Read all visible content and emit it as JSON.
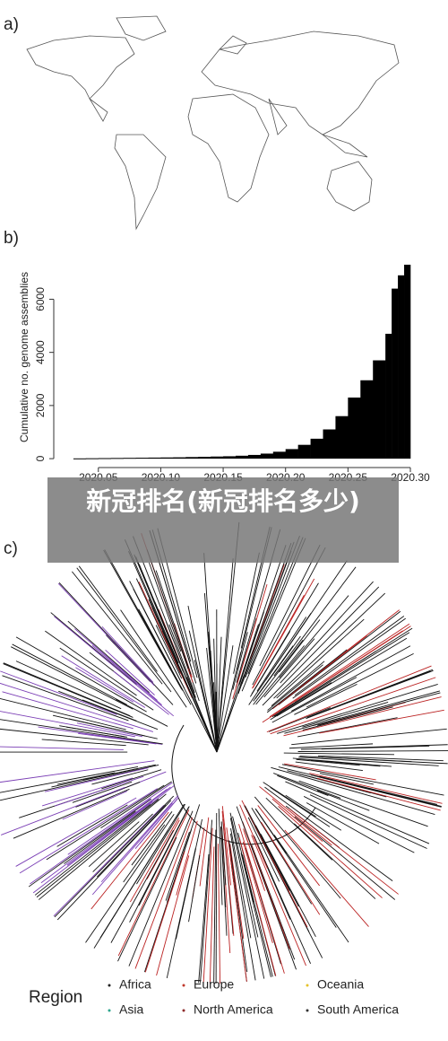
{
  "panel_labels": [
    "a)",
    "b)",
    "c)"
  ],
  "chart_data": [
    {
      "type": "area",
      "y_label": "Cumulative no. genome assemblies",
      "color": "#000000",
      "x": [
        2020.03,
        2020.04,
        2020.05,
        2020.06,
        2020.07,
        2020.08,
        2020.09,
        2020.1,
        2020.11,
        2020.12,
        2020.13,
        2020.14,
        2020.15,
        2020.16,
        2020.17,
        2020.18,
        2020.19,
        2020.2,
        2020.21,
        2020.22,
        2020.23,
        2020.24,
        2020.25,
        2020.26,
        2020.27,
        2020.28,
        2020.285,
        2020.29,
        2020.295
      ],
      "values": [
        10,
        15,
        20,
        25,
        30,
        35,
        40,
        45,
        50,
        60,
        70,
        80,
        90,
        110,
        140,
        190,
        260,
        360,
        520,
        750,
        1100,
        1600,
        2300,
        2950,
        3700,
        4700,
        6400,
        6900,
        7300
      ],
      "xlim": [
        2020.02,
        2020.3
      ],
      "ylim": [
        -200,
        7400
      ],
      "xticks": [
        {
          "value": 2020.05,
          "label": "2020.05"
        },
        {
          "value": 2020.1,
          "label": "2020.10"
        },
        {
          "value": 2020.15,
          "label": "2020.15"
        },
        {
          "value": 2020.2,
          "label": "2020.20"
        },
        {
          "value": 2020.25,
          "label": "2020.25"
        },
        {
          "value": 2020.3,
          "label": "2020.30"
        }
      ],
      "yticks": [
        0,
        2000,
        4000,
        6000
      ]
    }
  ],
  "legend": {
    "title": "Region",
    "items": [
      {
        "name": "Africa",
        "color": "#222222"
      },
      {
        "name": "Europe",
        "color": "#c0392b"
      },
      {
        "name": "Oceania",
        "color": "#e6c229"
      },
      {
        "name": "Asia",
        "color": "#2ca58d"
      },
      {
        "name": "North America",
        "color": "#8e2b2b"
      },
      {
        "name": "South America",
        "color": "#333333"
      }
    ]
  },
  "banner": {
    "text": "新冠排名(新冠排名多少)"
  }
}
